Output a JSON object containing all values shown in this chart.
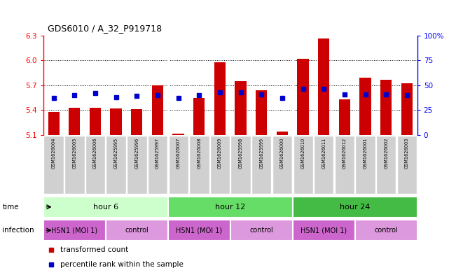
{
  "title": "GDS6010 / A_32_P919718",
  "samples": [
    "GSM1626004",
    "GSM1626005",
    "GSM1626006",
    "GSM1625995",
    "GSM1625996",
    "GSM1625997",
    "GSM1626007",
    "GSM1626008",
    "GSM1626009",
    "GSM1625998",
    "GSM1625999",
    "GSM1626000",
    "GSM1626010",
    "GSM1626011",
    "GSM1626012",
    "GSM1626001",
    "GSM1626002",
    "GSM1626003"
  ],
  "red_values": [
    5.38,
    5.43,
    5.43,
    5.42,
    5.41,
    5.7,
    5.11,
    5.55,
    5.98,
    5.75,
    5.64,
    5.14,
    6.02,
    6.27,
    5.53,
    5.79,
    5.77,
    5.72
  ],
  "blue_pct": [
    37,
    40,
    42,
    38,
    39,
    40,
    37,
    40,
    43,
    43,
    41,
    37,
    46,
    46,
    41,
    41,
    41,
    40
  ],
  "y_min": 5.1,
  "y_max": 6.3,
  "y_ticks_left": [
    5.1,
    5.4,
    5.7,
    6.0,
    6.3
  ],
  "y_ticks_right": [
    0,
    25,
    50,
    75,
    100
  ],
  "y_ticks_right_labels": [
    "0",
    "25",
    "50",
    "75",
    "100%"
  ],
  "grid_lines": [
    5.4,
    5.7,
    6.0
  ],
  "time_groups": [
    {
      "label": "hour 6",
      "start": 0,
      "end": 6,
      "color": "#ccffcc"
    },
    {
      "label": "hour 12",
      "start": 6,
      "end": 12,
      "color": "#66dd66"
    },
    {
      "label": "hour 24",
      "start": 12,
      "end": 18,
      "color": "#44bb44"
    }
  ],
  "infection_groups": [
    {
      "label": "H5N1 (MOI 1)",
      "start": 0,
      "end": 3
    },
    {
      "label": "control",
      "start": 3,
      "end": 6
    },
    {
      "label": "H5N1 (MOI 1)",
      "start": 6,
      "end": 9
    },
    {
      "label": "control",
      "start": 9,
      "end": 12
    },
    {
      "label": "H5N1 (MOI 1)",
      "start": 12,
      "end": 15
    },
    {
      "label": "control",
      "start": 15,
      "end": 18
    }
  ],
  "infection_colors": [
    "#cc66cc",
    "#dd99dd",
    "#cc66cc",
    "#dd99dd",
    "#cc66cc",
    "#dd99dd"
  ],
  "bar_color": "#cc0000",
  "dot_color": "#0000cc",
  "legend": [
    {
      "label": "transformed count",
      "color": "#cc0000"
    },
    {
      "label": "percentile rank within the sample",
      "color": "#0000cc"
    }
  ],
  "sample_box_color": "#d0d0d0",
  "time_label": "time",
  "infection_label": "infection"
}
